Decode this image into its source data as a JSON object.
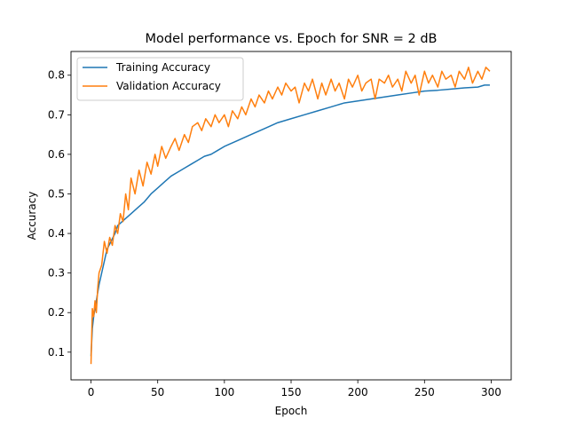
{
  "chart_data": {
    "type": "line",
    "title": "Model performance vs. Epoch for SNR = 2 dB",
    "xlabel": "Epoch",
    "ylabel": "Accuracy",
    "xlim": [
      -15,
      315
    ],
    "ylim": [
      0.03,
      0.86
    ],
    "xticks": [
      0,
      50,
      100,
      150,
      200,
      250,
      300
    ],
    "yticks": [
      0.1,
      0.2,
      0.3,
      0.4,
      0.5,
      0.6,
      0.7,
      0.8
    ],
    "grid": false,
    "legend_position": "top-left",
    "series": [
      {
        "name": "Training Accuracy",
        "color": "#1f77b4",
        "x": [
          0,
          1,
          2,
          3,
          4,
          5,
          6,
          8,
          10,
          12,
          15,
          18,
          20,
          25,
          30,
          35,
          40,
          45,
          50,
          55,
          60,
          65,
          70,
          75,
          80,
          85,
          90,
          95,
          100,
          110,
          120,
          130,
          140,
          150,
          160,
          170,
          180,
          190,
          200,
          210,
          220,
          230,
          240,
          250,
          260,
          270,
          280,
          290,
          295,
          299
        ],
        "values": [
          0.09,
          0.16,
          0.19,
          0.21,
          0.23,
          0.25,
          0.27,
          0.3,
          0.33,
          0.36,
          0.38,
          0.4,
          0.42,
          0.435,
          0.45,
          0.465,
          0.48,
          0.5,
          0.515,
          0.53,
          0.545,
          0.555,
          0.565,
          0.575,
          0.585,
          0.595,
          0.6,
          0.61,
          0.62,
          0.635,
          0.65,
          0.665,
          0.68,
          0.69,
          0.7,
          0.71,
          0.72,
          0.73,
          0.735,
          0.74,
          0.745,
          0.75,
          0.755,
          0.76,
          0.762,
          0.765,
          0.768,
          0.77,
          0.775,
          0.775
        ]
      },
      {
        "name": "Validation Accuracy",
        "color": "#ff7f0e",
        "x": [
          0,
          1,
          2,
          3,
          4,
          5,
          6,
          8,
          10,
          12,
          14,
          16,
          18,
          20,
          22,
          24,
          26,
          28,
          30,
          33,
          36,
          39,
          42,
          45,
          48,
          50,
          53,
          56,
          60,
          63,
          66,
          70,
          73,
          76,
          80,
          83,
          86,
          90,
          93,
          96,
          100,
          103,
          106,
          110,
          113,
          116,
          120,
          123,
          126,
          130,
          133,
          136,
          140,
          143,
          146,
          150,
          153,
          156,
          160,
          163,
          166,
          170,
          173,
          176,
          180,
          183,
          186,
          190,
          193,
          196,
          200,
          203,
          206,
          210,
          213,
          216,
          220,
          223,
          226,
          230,
          233,
          236,
          240,
          243,
          246,
          250,
          253,
          256,
          260,
          263,
          266,
          270,
          273,
          276,
          280,
          283,
          286,
          290,
          293,
          296,
          299
        ],
        "values": [
          0.07,
          0.21,
          0.19,
          0.23,
          0.2,
          0.26,
          0.3,
          0.32,
          0.38,
          0.35,
          0.39,
          0.37,
          0.42,
          0.4,
          0.45,
          0.43,
          0.5,
          0.46,
          0.54,
          0.5,
          0.56,
          0.52,
          0.58,
          0.55,
          0.6,
          0.57,
          0.62,
          0.59,
          0.62,
          0.64,
          0.61,
          0.65,
          0.63,
          0.67,
          0.68,
          0.66,
          0.69,
          0.67,
          0.7,
          0.68,
          0.7,
          0.67,
          0.71,
          0.69,
          0.72,
          0.7,
          0.74,
          0.72,
          0.75,
          0.73,
          0.76,
          0.74,
          0.77,
          0.75,
          0.78,
          0.76,
          0.77,
          0.73,
          0.78,
          0.76,
          0.79,
          0.74,
          0.78,
          0.75,
          0.79,
          0.76,
          0.78,
          0.74,
          0.79,
          0.77,
          0.8,
          0.76,
          0.78,
          0.79,
          0.74,
          0.79,
          0.78,
          0.8,
          0.77,
          0.79,
          0.76,
          0.81,
          0.78,
          0.8,
          0.75,
          0.81,
          0.78,
          0.8,
          0.77,
          0.81,
          0.79,
          0.8,
          0.77,
          0.81,
          0.79,
          0.82,
          0.78,
          0.81,
          0.79,
          0.82,
          0.81
        ]
      }
    ]
  }
}
